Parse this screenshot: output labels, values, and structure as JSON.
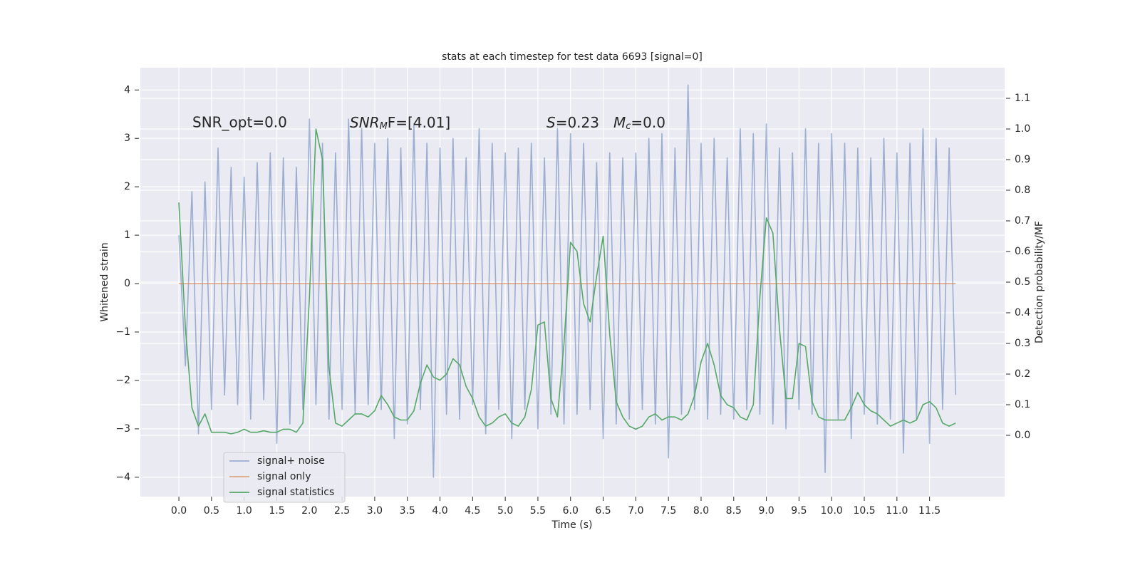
{
  "chart_data": {
    "type": "line",
    "title": "stats at each timestep for test data 6693 [signal=0]",
    "xlabel": "Time (s)",
    "ylabel": "Whitened strain",
    "y2label": "Detection probability/MF",
    "annotations": {
      "snr_opt": "SNR_opt=0.0",
      "snr_mf": {
        "base": "SNR",
        "sub": "M",
        "tail": "F=[4.01]"
      },
      "stats": {
        "s": "S",
        "s_val": "=0.23",
        "mc": "M",
        "mc_sub": "c",
        "mc_val": "=0.0"
      }
    },
    "x": [
      0.0,
      0.1,
      0.2,
      0.3,
      0.4,
      0.5,
      0.6,
      0.7,
      0.8,
      0.9,
      1.0,
      1.1,
      1.2,
      1.3,
      1.4,
      1.5,
      1.6,
      1.7,
      1.8,
      1.9,
      2.0,
      2.1,
      2.2,
      2.3,
      2.4,
      2.5,
      2.6,
      2.7,
      2.8,
      2.9,
      3.0,
      3.1,
      3.2,
      3.3,
      3.4,
      3.5,
      3.6,
      3.7,
      3.8,
      3.9,
      4.0,
      4.1,
      4.2,
      4.3,
      4.4,
      4.5,
      4.6,
      4.7,
      4.8,
      4.9,
      5.0,
      5.1,
      5.2,
      5.3,
      5.4,
      5.5,
      5.6,
      5.7,
      5.8,
      5.9,
      6.0,
      6.1,
      6.2,
      6.3,
      6.4,
      6.5,
      6.6,
      6.7,
      6.8,
      6.9,
      7.0,
      7.1,
      7.2,
      7.3,
      7.4,
      7.5,
      7.6,
      7.7,
      7.8,
      7.9,
      8.0,
      8.1,
      8.2,
      8.3,
      8.4,
      8.5,
      8.6,
      8.7,
      8.8,
      8.9,
      9.0,
      9.1,
      9.2,
      9.3,
      9.4,
      9.5,
      9.6,
      9.7,
      9.8,
      9.9,
      10.0,
      10.1,
      10.2,
      10.3,
      10.4,
      10.5,
      10.6,
      10.7,
      10.8,
      10.9,
      11.0,
      11.1,
      11.2,
      11.3,
      11.4,
      11.5,
      11.6,
      11.7,
      11.8,
      11.9
    ],
    "series": [
      {
        "name": "signal+ noise",
        "color": "#4c72b0",
        "opacity": 0.5,
        "values": [
          1.0,
          -1.7,
          1.9,
          -3.1,
          2.1,
          -2.6,
          2.8,
          -2.3,
          2.4,
          -2.5,
          2.2,
          -2.8,
          2.5,
          -2.4,
          2.7,
          -3.3,
          2.6,
          -2.9,
          2.4,
          -2.6,
          3.4,
          -2.5,
          2.9,
          -2.8,
          2.7,
          -2.6,
          3.4,
          -2.7,
          3.2,
          -2.5,
          2.9,
          -2.6,
          3.0,
          -3.2,
          2.8,
          -2.9,
          3.3,
          -2.6,
          2.9,
          -4.0,
          2.8,
          -2.7,
          3.0,
          -2.8,
          2.6,
          -2.5,
          3.2,
          -3.1,
          2.9,
          -2.6,
          2.7,
          -3.2,
          2.8,
          -2.6,
          2.9,
          -3.0,
          2.6,
          -2.7,
          3.2,
          -2.9,
          3.1,
          -2.7,
          2.9,
          -2.6,
          2.5,
          -3.2,
          2.7,
          -2.9,
          2.6,
          -2.8,
          2.7,
          -2.6,
          3.0,
          -2.9,
          3.1,
          -3.6,
          2.8,
          -2.7,
          4.1,
          -2.6,
          2.9,
          -2.8,
          3.0,
          -2.7,
          2.6,
          -2.8,
          3.2,
          -2.6,
          3.1,
          -2.7,
          3.3,
          -2.9,
          2.8,
          -3.0,
          2.7,
          -2.6,
          3.2,
          -2.7,
          2.9,
          -3.9,
          3.1,
          -2.8,
          2.9,
          -3.2,
          2.8,
          -2.7,
          2.6,
          -2.9,
          3.0,
          -2.8,
          2.7,
          -3.5,
          2.9,
          -2.8,
          3.2,
          -3.3,
          3.0,
          -2.6,
          2.8,
          -2.3
        ]
      },
      {
        "name": "signal only",
        "color": "#dd8452",
        "opacity": 0.7,
        "values": [
          0,
          0,
          0,
          0,
          0,
          0,
          0,
          0,
          0,
          0,
          0,
          0,
          0,
          0,
          0,
          0,
          0,
          0,
          0,
          0,
          0,
          0,
          0,
          0,
          0,
          0,
          0,
          0,
          0,
          0,
          0,
          0,
          0,
          0,
          0,
          0,
          0,
          0,
          0,
          0,
          0,
          0,
          0,
          0,
          0,
          0,
          0,
          0,
          0,
          0,
          0,
          0,
          0,
          0,
          0,
          0,
          0,
          0,
          0,
          0,
          0,
          0,
          0,
          0,
          0,
          0,
          0,
          0,
          0,
          0,
          0,
          0,
          0,
          0,
          0,
          0,
          0,
          0,
          0,
          0,
          0,
          0,
          0,
          0,
          0,
          0,
          0,
          0,
          0,
          0,
          0,
          0,
          0,
          0,
          0,
          0,
          0,
          0,
          0,
          0,
          0,
          0,
          0,
          0,
          0,
          0,
          0,
          0,
          0,
          0,
          0,
          0,
          0,
          0,
          0,
          0,
          0,
          0,
          0,
          0
        ]
      },
      {
        "name": "signal statistics",
        "color": "#55a868",
        "opacity": 1,
        "axis": "y2",
        "values": [
          0.76,
          0.35,
          0.09,
          0.03,
          0.07,
          0.01,
          0.01,
          0.01,
          0.005,
          0.01,
          0.02,
          0.01,
          0.01,
          0.015,
          0.01,
          0.01,
          0.02,
          0.02,
          0.01,
          0.04,
          0.45,
          1.0,
          0.9,
          0.22,
          0.04,
          0.03,
          0.05,
          0.07,
          0.07,
          0.06,
          0.08,
          0.13,
          0.1,
          0.06,
          0.05,
          0.05,
          0.08,
          0.17,
          0.23,
          0.19,
          0.18,
          0.2,
          0.25,
          0.23,
          0.16,
          0.12,
          0.06,
          0.03,
          0.04,
          0.06,
          0.07,
          0.04,
          0.03,
          0.06,
          0.15,
          0.36,
          0.37,
          0.12,
          0.06,
          0.3,
          0.63,
          0.6,
          0.43,
          0.37,
          0.52,
          0.65,
          0.33,
          0.11,
          0.06,
          0.03,
          0.02,
          0.03,
          0.06,
          0.07,
          0.05,
          0.06,
          0.06,
          0.05,
          0.07,
          0.13,
          0.24,
          0.3,
          0.23,
          0.13,
          0.1,
          0.09,
          0.06,
          0.05,
          0.1,
          0.45,
          0.71,
          0.66,
          0.35,
          0.12,
          0.12,
          0.3,
          0.29,
          0.11,
          0.06,
          0.05,
          0.05,
          0.05,
          0.05,
          0.09,
          0.14,
          0.1,
          0.08,
          0.07,
          0.05,
          0.03,
          0.04,
          0.05,
          0.04,
          0.05,
          0.1,
          0.11,
          0.09,
          0.04,
          0.03,
          0.04
        ]
      }
    ],
    "xlim": [
      -0.59,
      12.65
    ],
    "xticks": [
      {
        "value": 0,
        "label": "0.0"
      },
      0.5,
      {
        "value": 1,
        "label": "1.0"
      },
      1.5,
      {
        "value": 2,
        "label": "2.0"
      },
      2.5,
      {
        "value": 3,
        "label": "3.0"
      },
      3.5,
      {
        "value": 4,
        "label": "4.0"
      },
      4.5,
      {
        "value": 5,
        "label": "5.0"
      },
      5.5,
      {
        "value": 6,
        "label": "6.0"
      },
      6.5,
      {
        "value": 7,
        "label": "7.0"
      },
      7.5,
      {
        "value": 8,
        "label": "8.0"
      },
      8.5,
      {
        "value": 9,
        "label": "9.0"
      },
      9.5,
      {
        "value": 10,
        "label": "10.0"
      },
      10.5,
      {
        "value": 11,
        "label": "11.0"
      },
      11.5
    ],
    "ylim": [
      -4.4,
      4.46
    ],
    "yticks": [
      {
        "value": -4,
        "label": "−4"
      },
      {
        "value": -3,
        "label": "−3"
      },
      {
        "value": -2,
        "label": "−2"
      },
      {
        "value": -1,
        "label": "−1"
      },
      0,
      1,
      2,
      3,
      4
    ],
    "y2lim": [
      -0.2,
      1.2
    ],
    "y2ticks": [
      {
        "value": 0,
        "label": "0.0"
      },
      0.1,
      0.2,
      0.3,
      0.4,
      0.5,
      0.6,
      0.7,
      0.8,
      0.9,
      {
        "value": 1,
        "label": "1.0"
      },
      1.1
    ],
    "grid": true,
    "legend": "lower left",
    "background": "#eaeaf2"
  }
}
